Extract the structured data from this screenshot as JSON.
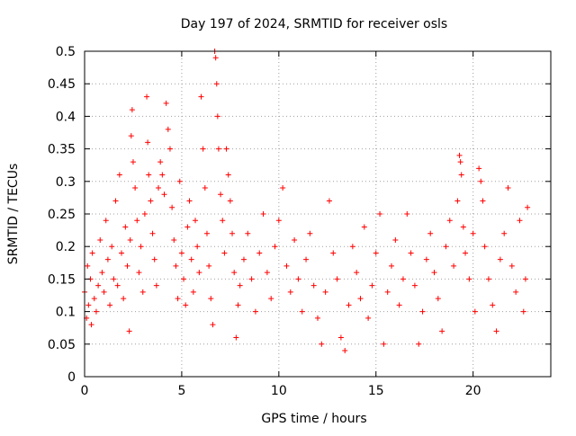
{
  "chart_data": {
    "type": "scatter",
    "title": "Day 197 of 2024, SRMTID for receiver osls",
    "xlabel": "GPS time / hours",
    "ylabel": "SRMTID / TECUs",
    "xlim": [
      0,
      24
    ],
    "ylim": [
      0,
      0.5
    ],
    "xticks": [
      "0",
      "5",
      "10",
      "15",
      "20"
    ],
    "xtick_values": [
      0,
      5,
      10,
      15,
      20
    ],
    "yticks": [
      "0",
      "0.05",
      "0.1",
      "0.15",
      "0.2",
      "0.25",
      "0.3",
      "0.35",
      "0.4",
      "0.45",
      "0.5"
    ],
    "ytick_values": [
      0,
      0.05,
      0.1,
      0.15,
      0.2,
      0.25,
      0.3,
      0.35,
      0.4,
      0.45,
      0.5
    ],
    "grid": true,
    "marker": "+",
    "color": "#ff0000",
    "x_data_range": [
      0,
      22.8
    ],
    "series": [
      {
        "name": "SRMTID",
        "points": [
          [
            0.0,
            0.13
          ],
          [
            0.1,
            0.09
          ],
          [
            0.15,
            0.17
          ],
          [
            0.2,
            0.11
          ],
          [
            0.3,
            0.15
          ],
          [
            0.35,
            0.08
          ],
          [
            0.4,
            0.19
          ],
          [
            0.5,
            0.12
          ],
          [
            0.6,
            0.1
          ],
          [
            0.7,
            0.14
          ],
          [
            0.8,
            0.21
          ],
          [
            0.9,
            0.16
          ],
          [
            1.0,
            0.13
          ],
          [
            1.1,
            0.24
          ],
          [
            1.2,
            0.18
          ],
          [
            1.3,
            0.11
          ],
          [
            1.4,
            0.2
          ],
          [
            1.5,
            0.15
          ],
          [
            1.6,
            0.27
          ],
          [
            1.7,
            0.14
          ],
          [
            1.8,
            0.31
          ],
          [
            1.9,
            0.19
          ],
          [
            2.0,
            0.12
          ],
          [
            2.1,
            0.23
          ],
          [
            2.2,
            0.17
          ],
          [
            2.3,
            0.07
          ],
          [
            2.35,
            0.21
          ],
          [
            2.4,
            0.37
          ],
          [
            2.45,
            0.41
          ],
          [
            2.5,
            0.33
          ],
          [
            2.6,
            0.29
          ],
          [
            2.7,
            0.24
          ],
          [
            2.8,
            0.16
          ],
          [
            2.9,
            0.2
          ],
          [
            3.0,
            0.13
          ],
          [
            3.1,
            0.25
          ],
          [
            3.2,
            0.43
          ],
          [
            3.25,
            0.36
          ],
          [
            3.3,
            0.31
          ],
          [
            3.4,
            0.27
          ],
          [
            3.5,
            0.22
          ],
          [
            3.6,
            0.18
          ],
          [
            3.7,
            0.14
          ],
          [
            3.8,
            0.29
          ],
          [
            3.9,
            0.33
          ],
          [
            4.0,
            0.31
          ],
          [
            4.1,
            0.28
          ],
          [
            4.2,
            0.42
          ],
          [
            4.3,
            0.38
          ],
          [
            4.4,
            0.35
          ],
          [
            4.5,
            0.26
          ],
          [
            4.6,
            0.21
          ],
          [
            4.7,
            0.17
          ],
          [
            4.8,
            0.12
          ],
          [
            4.9,
            0.3
          ],
          [
            5.0,
            0.19
          ],
          [
            5.1,
            0.15
          ],
          [
            5.2,
            0.11
          ],
          [
            5.3,
            0.23
          ],
          [
            5.4,
            0.27
          ],
          [
            5.5,
            0.18
          ],
          [
            5.6,
            0.13
          ],
          [
            5.7,
            0.24
          ],
          [
            5.8,
            0.2
          ],
          [
            5.9,
            0.16
          ],
          [
            6.0,
            0.43
          ],
          [
            6.1,
            0.35
          ],
          [
            6.2,
            0.29
          ],
          [
            6.3,
            0.22
          ],
          [
            6.4,
            0.17
          ],
          [
            6.5,
            0.12
          ],
          [
            6.6,
            0.08
          ],
          [
            6.7,
            0.5
          ],
          [
            6.75,
            0.49
          ],
          [
            6.8,
            0.45
          ],
          [
            6.85,
            0.4
          ],
          [
            6.9,
            0.35
          ],
          [
            7.0,
            0.28
          ],
          [
            7.1,
            0.24
          ],
          [
            7.2,
            0.19
          ],
          [
            7.3,
            0.35
          ],
          [
            7.4,
            0.31
          ],
          [
            7.5,
            0.27
          ],
          [
            7.6,
            0.22
          ],
          [
            7.7,
            0.16
          ],
          [
            7.8,
            0.06
          ],
          [
            7.9,
            0.11
          ],
          [
            8.0,
            0.14
          ],
          [
            8.2,
            0.18
          ],
          [
            8.4,
            0.22
          ],
          [
            8.6,
            0.15
          ],
          [
            8.8,
            0.1
          ],
          [
            9.0,
            0.19
          ],
          [
            9.2,
            0.25
          ],
          [
            9.4,
            0.16
          ],
          [
            9.6,
            0.12
          ],
          [
            9.8,
            0.2
          ],
          [
            10.0,
            0.24
          ],
          [
            10.2,
            0.29
          ],
          [
            10.4,
            0.17
          ],
          [
            10.6,
            0.13
          ],
          [
            10.8,
            0.21
          ],
          [
            11.0,
            0.15
          ],
          [
            11.2,
            0.1
          ],
          [
            11.4,
            0.18
          ],
          [
            11.6,
            0.22
          ],
          [
            11.8,
            0.14
          ],
          [
            12.0,
            0.09
          ],
          [
            12.2,
            0.05
          ],
          [
            12.4,
            0.13
          ],
          [
            12.6,
            0.27
          ],
          [
            12.8,
            0.19
          ],
          [
            13.0,
            0.15
          ],
          [
            13.2,
            0.06
          ],
          [
            13.4,
            0.04
          ],
          [
            13.6,
            0.11
          ],
          [
            13.8,
            0.2
          ],
          [
            14.0,
            0.16
          ],
          [
            14.2,
            0.12
          ],
          [
            14.4,
            0.23
          ],
          [
            14.6,
            0.09
          ],
          [
            14.8,
            0.14
          ],
          [
            15.0,
            0.19
          ],
          [
            15.2,
            0.25
          ],
          [
            15.4,
            0.05
          ],
          [
            15.6,
            0.13
          ],
          [
            15.8,
            0.17
          ],
          [
            16.0,
            0.21
          ],
          [
            16.2,
            0.11
          ],
          [
            16.4,
            0.15
          ],
          [
            16.6,
            0.25
          ],
          [
            16.8,
            0.19
          ],
          [
            17.0,
            0.14
          ],
          [
            17.2,
            0.05
          ],
          [
            17.4,
            0.1
          ],
          [
            17.6,
            0.18
          ],
          [
            17.8,
            0.22
          ],
          [
            18.0,
            0.16
          ],
          [
            18.2,
            0.12
          ],
          [
            18.4,
            0.07
          ],
          [
            18.6,
            0.2
          ],
          [
            18.8,
            0.24
          ],
          [
            19.0,
            0.17
          ],
          [
            19.2,
            0.27
          ],
          [
            19.3,
            0.34
          ],
          [
            19.35,
            0.33
          ],
          [
            19.4,
            0.31
          ],
          [
            19.5,
            0.23
          ],
          [
            19.6,
            0.19
          ],
          [
            19.8,
            0.15
          ],
          [
            20.0,
            0.22
          ],
          [
            20.1,
            0.1
          ],
          [
            20.3,
            0.32
          ],
          [
            20.4,
            0.3
          ],
          [
            20.5,
            0.27
          ],
          [
            20.6,
            0.2
          ],
          [
            20.8,
            0.15
          ],
          [
            21.0,
            0.11
          ],
          [
            21.2,
            0.07
          ],
          [
            21.4,
            0.18
          ],
          [
            21.6,
            0.22
          ],
          [
            21.8,
            0.29
          ],
          [
            22.0,
            0.17
          ],
          [
            22.2,
            0.13
          ],
          [
            22.4,
            0.24
          ],
          [
            22.6,
            0.1
          ],
          [
            22.7,
            0.15
          ],
          [
            22.8,
            0.26
          ]
        ]
      }
    ]
  }
}
